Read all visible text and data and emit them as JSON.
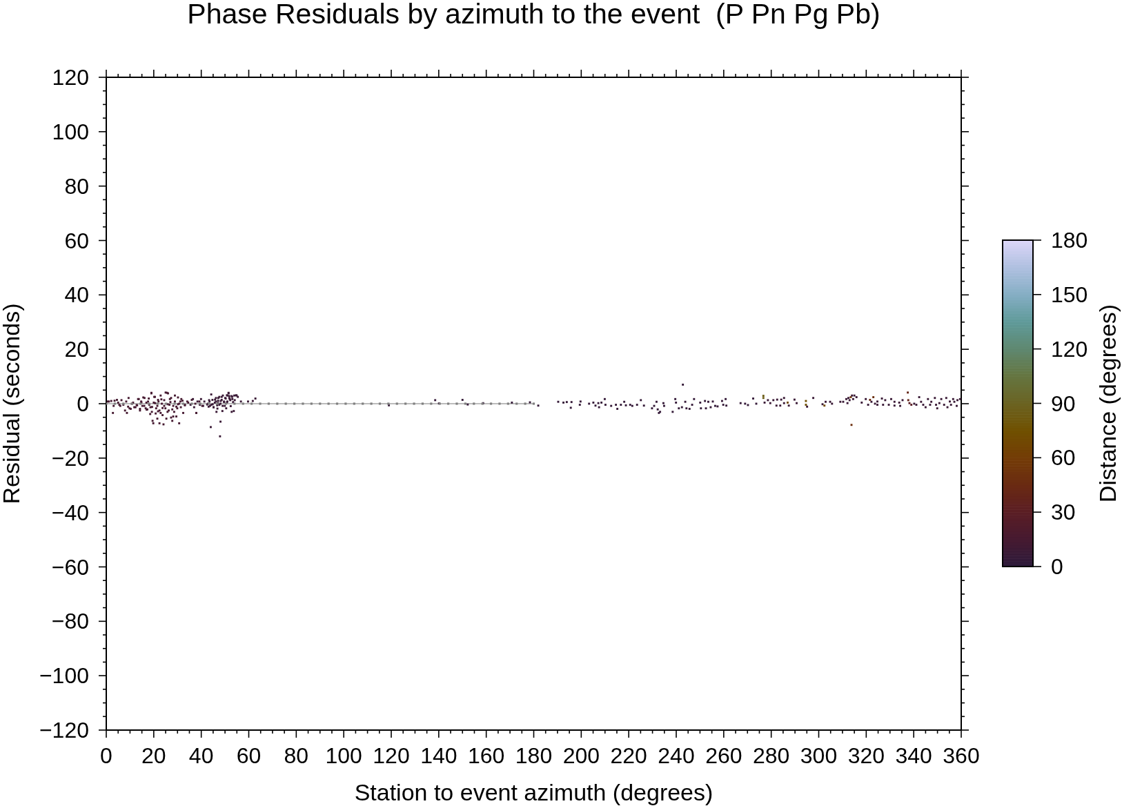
{
  "chart_data": {
    "type": "scatter",
    "title": "Phase Residuals by azimuth to the event  (P Pn Pg Pb)",
    "xlabel": "Station to event azimuth (degrees)",
    "ylabel": "Residual (seconds)",
    "clabel": "Distance (degrees)",
    "xlim": [
      0,
      360
    ],
    "xticks": [
      0,
      20,
      40,
      60,
      80,
      100,
      120,
      140,
      160,
      180,
      200,
      220,
      240,
      260,
      280,
      300,
      320,
      340,
      360
    ],
    "ylim": [
      -120,
      120
    ],
    "yticks": [
      {
        "value": -120,
        "label": "−120"
      },
      {
        "value": -100,
        "label": "−100"
      },
      {
        "value": -80,
        "label": "−80"
      },
      {
        "value": -60,
        "label": "−60"
      },
      {
        "value": -40,
        "label": "−40"
      },
      {
        "value": -20,
        "label": "−20"
      },
      0,
      20,
      40,
      60,
      80,
      100,
      120
    ],
    "clim": [
      0,
      180
    ],
    "cticks": [
      0,
      30,
      60,
      90,
      120,
      150,
      180
    ],
    "marker": "square",
    "series": [
      {
        "x": [
          0.6,
          2.1,
          3.1,
          2.8,
          4.5,
          5.5,
          6.4,
          7.9,
          8.7,
          9.4,
          9.8,
          11.3,
          12.3,
          13.7,
          14.2,
          15.2,
          16.1,
          16.6,
          17.6,
          18.1,
          19.0,
          18.5,
          19.5,
          19.8,
          20.2,
          21.0,
          21.5,
          22.0,
          22.4,
          22.9,
          24.1,
          24.4,
          25.0,
          25.3,
          26.0,
          26.3,
          26.8,
          27.3,
          27.8,
          28.2,
          28.9,
          29.5,
          29.9,
          30.7,
          31.2,
          31.6,
          32.4,
          33.1,
          34.1,
          12.8,
          14.8,
          17.0,
          19.3,
          20.6,
          21.8,
          23.2,
          23.7,
          25.8,
          27.0,
          28.6,
          30.2,
          35.5,
          36.5,
          37.0,
          37.9,
          38.4,
          39.4,
          39.9,
          40.8,
          41.3,
          42.8,
          43.3,
          43.7,
          44.0,
          44.2,
          45.2,
          46.2,
          46.4,
          47.2,
          47.6,
          47.9,
          48.1,
          48.6,
          48.9,
          49.6,
          50.1,
          50.5,
          51.0,
          51.5,
          52.0,
          52.8,
          53.0,
          53.7,
          54.1,
          54.9,
          56.7,
          59.7,
          61.7,
          62.8,
          45.8,
          47.0,
          48.2,
          49.0,
          50.8,
          51.8,
          53.4,
          44.8,
          46.8,
          52.4,
          119.0,
          138.5,
          140.1,
          150.0,
          152.2,
          158.7,
          170.8,
          178.4,
          181.9,
          190.3,
          192.5,
          193.9,
          195.9,
          195.6,
          199.7,
          199.4,
          203.3,
          205.1,
          206.0,
          207.2,
          207.5,
          208.5,
          209.9,
          210.2,
          212.6,
          214.6,
          215.2,
          216.7,
          218.1,
          218.8,
          220.6,
          221.5,
          223.5,
          225.1,
          226.4,
          229.8,
          230.7,
          231.7,
          232.2,
          232.7,
          233.2,
          234.6,
          234.9,
          238.5,
          239.6,
          239.9,
          241.1,
          242.8,
          242.4,
          243.8,
          244.3,
          245.6,
          246.7,
          247.5,
          250.1,
          250.4,
          252.1,
          252.5,
          253.5,
          254.5,
          255.4,
          256.4,
          257.4,
          259.3,
          259.8,
          260.8,
          261.1,
          267.1,
          269.0,
          270.2,
          272.4,
          273.7,
          276.7,
          276.7,
          277.2,
          278.6,
          279.6,
          280.9,
          282.2,
          282.5,
          283.8,
          284.2,
          285.4,
          285.4,
          286.9,
          287.4,
          289.8,
          290.7,
          294.6,
          294.6,
          295.1,
          297.7,
          301.6,
          302.4,
          302.9,
          304.8,
          305.6,
          309.1,
          310.3,
          311.6,
          312.1,
          312.5,
          313.0,
          313.5,
          314.0,
          314.5,
          315.0,
          313.8,
          315.9,
          318.1,
          319.8,
          320.8,
          321.6,
          322.2,
          323.0,
          323.7,
          324.7,
          324.7,
          326.6,
          327.1,
          328.0,
          329.5,
          330.5,
          331.9,
          331.9,
          333.9,
          334.3,
          335.3,
          337.5,
          337.7,
          338.2,
          339.0,
          340.2,
          341.1,
          342.3,
          343.1,
          344.0,
          345.0,
          346.0,
          346.9,
          347.4,
          348.9,
          349.4,
          349.9,
          350.8,
          351.6,
          352.8,
          353.7,
          354.2,
          355.2,
          355.7,
          356.6,
          357.1,
          358.1,
          358.4,
          359.5,
          1.1,
          3.5,
          5.0,
          5.9,
          7.2,
          8.4,
          9.2,
          10.3,
          10.8,
          11.8,
          13.0,
          13.4,
          14.2,
          14.7,
          15.6,
          16.0,
          16.9,
          17.3,
          17.9,
          18.6,
          19.0,
          19.2,
          20.0,
          20.5,
          20.8,
          21.5,
          21.8,
          22.4,
          22.9,
          23.4,
          23.7,
          24.4,
          24.9,
          25.6,
          25.8,
          26.6,
          27.3,
          27.8,
          28.2,
          28.9,
          29.5,
          30.2,
          30.7,
          31.4,
          32.1,
          33.1,
          34.5,
          36.0,
          37.5,
          37.9,
          39.2,
          40.4,
          42.5,
          43.1,
          43.5,
          44.2,
          44.7,
          45.2,
          45.7,
          46.2,
          46.7,
          47.1,
          47.6,
          48.1,
          48.6,
          49.1,
          49.6,
          49.9,
          50.3,
          50.8,
          51.0,
          51.5,
          51.8,
          52.2,
          52.8,
          53.1,
          53.9,
          54.7,
          55.4
        ],
        "values": [
          0.8,
          1.0,
          -0.8,
          -3.4,
          1.4,
          -0.4,
          1.3,
          -2.5,
          -3.4,
          2.1,
          -1.7,
          0.4,
          -1.3,
          1.7,
          -2.5,
          -0.8,
          2.1,
          -1.7,
          0.8,
          -0.4,
          3.8,
          -3.8,
          -6.3,
          -7.2,
          2.5,
          -1.7,
          -5.5,
          0.8,
          -7.2,
          -3.4,
          -7.6,
          -0.8,
          4.1,
          -5.5,
          3.8,
          -2.5,
          1.7,
          -5.1,
          -6.3,
          -0.8,
          3.0,
          -4.7,
          -1.7,
          -7.2,
          0.8,
          1.7,
          -3.4,
          -0.4,
          0.8,
          -0.5,
          0.5,
          -2.2,
          -1.2,
          0.2,
          -2.8,
          1.6,
          -1.6,
          -0.2,
          0.6,
          -3.0,
          -0.2,
          -0.4,
          1.7,
          -1.3,
          -3.4,
          0.8,
          -0.4,
          1.7,
          -0.8,
          0.8,
          0,
          1.3,
          -0.8,
          -8.6,
          3.4,
          -1.3,
          0.8,
          -3.0,
          2.1,
          -0.4,
          -12.0,
          -6.6,
          2.5,
          -2.7,
          0.8,
          2.1,
          -1.7,
          3.0,
          3.8,
          1.7,
          -3.0,
          2.5,
          -2.7,
          1.3,
          3.0,
          0.8,
          0.8,
          1.0,
          1.9,
          1.5,
          0.3,
          1.0,
          -0.8,
          0.5,
          2.8,
          0.6,
          -0.2,
          -1.8,
          -0.9,
          -0.6,
          1.3,
          0.1,
          1.4,
          -0.3,
          0.2,
          0.4,
          0.5,
          -0.7,
          0.7,
          0.4,
          0.6,
          0.6,
          -1.5,
          0.8,
          -0.4,
          0,
          0.4,
          -0.7,
          0.2,
          -1.3,
          0.4,
          1.7,
          -0.4,
          -0.8,
          -0.4,
          -1.9,
          -0.4,
          0.7,
          -0.6,
          -0.4,
          -0.8,
          -0.4,
          1.3,
          -0.7,
          -1.7,
          -0.8,
          0.7,
          -2.1,
          -3.4,
          -3.0,
          0.2,
          -0.8,
          -3.0,
          1.7,
          0.4,
          -1.7,
          7.0,
          -1.3,
          0.7,
          -1.7,
          -1.9,
          -0.4,
          1.7,
          0.4,
          -1.7,
          1.0,
          -1.7,
          0.7,
          -1.3,
          0.8,
          -0.8,
          -1.0,
          1.0,
          -0.4,
          1.7,
          -0.7,
          0.2,
          0,
          -0.5,
          1.9,
          0,
          2.9,
          2.1,
          0.4,
          1.3,
          0.2,
          1.3,
          -0.7,
          1.5,
          -0.7,
          1.5,
          2.1,
          0.2,
          0.4,
          -0.7,
          1.5,
          0.2,
          1.0,
          -0.4,
          -1.1,
          2.1,
          -0.2,
          -0.7,
          0.7,
          0.7,
          0,
          0.7,
          0.7,
          1.7,
          0.2,
          2.1,
          1.3,
          2.4,
          3.0,
          1.7,
          3.0,
          -7.8,
          2.4,
          0.4,
          1.7,
          -0.4,
          1.4,
          0.7,
          2.4,
          0,
          0.8,
          -0.4,
          1.9,
          -0.4,
          1.3,
          -0.4,
          1.7,
          0.7,
          -0.7,
          0.4,
          -0.8,
          1.3,
          4.1,
          1.3,
          0.2,
          -0.4,
          0,
          -0.4,
          2.4,
          0.7,
          -0.4,
          -1.3,
          1.7,
          -0.4,
          0.7,
          2.1,
          -0.4,
          -1.7,
          0.2,
          1.7,
          -0.4,
          2.1,
          -1.3,
          0.8,
          -0.4,
          1.7,
          0.7,
          -0.8,
          1.3,
          1.7,
          0.8,
          1.1,
          0.4,
          -0.8,
          -0.4,
          0.8,
          -1.1,
          -1.9,
          0,
          -1.3,
          -0.6,
          1.7,
          -1.9,
          0.8,
          2.3,
          -0.8,
          0.4,
          -2.1,
          1.9,
          -1.3,
          4.0,
          -3.0,
          0.4,
          2.5,
          -3.6,
          -0.8,
          1.4,
          -2.5,
          3.0,
          0,
          -4.2,
          1.3,
          -1.7,
          4.0,
          -3.0,
          -0.4,
          2.1,
          -2.1,
          -4.7,
          0.8,
          -1.1,
          2.3,
          0,
          -1.3,
          1.1,
          -0.6,
          0.4,
          1.4,
          0,
          -3.4,
          0.8,
          -0.8,
          -0.3,
          -1.1,
          0.8,
          -0.4,
          1.4,
          -1.3,
          0.4,
          2.1,
          -0.6,
          1.1,
          2.5,
          0,
          1.4,
          3.0,
          0.6,
          -0.8,
          1.9,
          3.1,
          0.8,
          4.0,
          2.1,
          1.3,
          2.8,
          1.7,
          3.0,
          3.1,
          2.5
        ],
        "colors": [
          "#461a31",
          "#461a31",
          "#461a31",
          "#461a31",
          "#461a31",
          "#461a31",
          "#461a31",
          "#461a31",
          "#461a31",
          "#461a31",
          "#461a31",
          "#461a31",
          "#461a31",
          "#461a31",
          "#461a31",
          "#461a31",
          "#461a31",
          "#461a31",
          "#461a31",
          "#461a31",
          "#461a31",
          "#461a31",
          "#461a31",
          "#461a31",
          "#461a31",
          "#461a31",
          "#461a31",
          "#461a31",
          "#461a31",
          "#461a31",
          "#461a31",
          "#461a31",
          "#461a31",
          "#461a31",
          "#461a31",
          "#461a31",
          "#461a31",
          "#461a31",
          "#461a31",
          "#461a31",
          "#461a31",
          "#461a31",
          "#461a31",
          "#461a31",
          "#461a31",
          "#461a31",
          "#461a31",
          "#461a31",
          "#461a31",
          "#461a31",
          "#461a31",
          "#461a31",
          "#461a31",
          "#461a31",
          "#461a31",
          "#461a31",
          "#461a31",
          "#461a31",
          "#461a31",
          "#461a31",
          "#461a31",
          "#3a1a36",
          "#3a1a36",
          "#3a1a36",
          "#3a1a36",
          "#3a1a36",
          "#3a1a36",
          "#3a1a36",
          "#3a1a36",
          "#3a1a36",
          "#3a1a36",
          "#3a1a36",
          "#3a1a36",
          "#3a1a36",
          "#3a1a36",
          "#3a1a36",
          "#3a1a36",
          "#3a1a36",
          "#3a1a36",
          "#3a1a36",
          "#3a1a36",
          "#3a1a36",
          "#3a1a36",
          "#3a1a36",
          "#3a1a36",
          "#3a1a36",
          "#3a1a36",
          "#3a1a36",
          "#3a1a36",
          "#3a1a36",
          "#3a1a36",
          "#3a1a36",
          "#3a1a36",
          "#3a1a36",
          "#3a1a36",
          "#3a1a36",
          "#3a1a36",
          "#3a1a36",
          "#3a1a36",
          "#3a1a36",
          "#3a1a36",
          "#3a1a36",
          "#3a1a36",
          "#3a1a36",
          "#3a1a36",
          "#3a1a36",
          "#3a1a36",
          "#3a1a36",
          "#3a1a36",
          "#351a38",
          "#351a38",
          "#351a38",
          "#351a38",
          "#351a38",
          "#351a38",
          "#351a38",
          "#351a38",
          "#351a38",
          "#351a38",
          "#351a38",
          "#351a38",
          "#351a38",
          "#351a38",
          "#351a38",
          "#351a38",
          "#351a38",
          "#351a38",
          "#351a38",
          "#351a38",
          "#351a38",
          "#351a38",
          "#351a38",
          "#351a38",
          "#351a38",
          "#351a38",
          "#351a38",
          "#351a38",
          "#351a38",
          "#351a38",
          "#351a38",
          "#351a38",
          "#351a38",
          "#351a38",
          "#351a38",
          "#351a38",
          "#351a38",
          "#351a38",
          "#351a38",
          "#351a38",
          "#351a38",
          "#351a38",
          "#351a38",
          "#351a38",
          "#351a38",
          "#351a38",
          "#351a38",
          "#351a38",
          "#351a38",
          "#351a38",
          "#351a38",
          "#351a38",
          "#351a38",
          "#351a38",
          "#351a38",
          "#351a38",
          "#351a38",
          "#351a38",
          "#351a38",
          "#351a38",
          "#351a38",
          "#351a38",
          "#351a38",
          "#351a38",
          "#351a38",
          "#351a38",
          "#351a38",
          "#351a38",
          "#351a38",
          "#351a38",
          "#351a38",
          "#351a38",
          "#6d5d17",
          "#6d5d17",
          "#3a1a36",
          "#3a1a36",
          "#3a1a36",
          "#3a1a36",
          "#3a1a36",
          "#3a1a36",
          "#3a1a36",
          "#3a1a36",
          "#3a1a36",
          "#3a1a36",
          "#714902",
          "#3a1a36",
          "#3a1a36",
          "#3a1a36",
          "#705000",
          "#705000",
          "#3a1a36",
          "#3a1a36",
          "#3a1a36",
          "#714902",
          "#3a1a36",
          "#3a1a36",
          "#3a1a36",
          "#3a1a36",
          "#3a1a36",
          "#3a1a36",
          "#3a1a36",
          "#3a1a36",
          "#3a1a36",
          "#70360a",
          "#3a1a36",
          "#3a1a36",
          "#3a1a36",
          "#6d300e",
          "#3a1a36",
          "#3a1a36",
          "#3a1a36",
          "#3a1a36",
          "#6a2a12",
          "#3a1a36",
          "#6d300e",
          "#3a1a36",
          "#3a1a36",
          "#3a1a36",
          "#3a1a36",
          "#3a1a36",
          "#3a1a36",
          "#3a1a36",
          "#3a1a36",
          "#3a1a36",
          "#3a1a36",
          "#3a1a36",
          "#3a1a36",
          "#3a1a36",
          "#652618",
          "#652618",
          "#5a1d24",
          "#5a1d24",
          "#3a1a36",
          "#3a1a36",
          "#3a1a36",
          "#3a1a36",
          "#3a1a36",
          "#3a1a36",
          "#3a1a36",
          "#3a1a36",
          "#3a1a36",
          "#3a1a36",
          "#3a1a36",
          "#3a1a36",
          "#3a1a36",
          "#3a1a36",
          "#3a1a36",
          "#3a1a36",
          "#3a1a36",
          "#3a1a36",
          "#3a1a36",
          "#3a1a36",
          "#3a1a36",
          "#3a1a36",
          "#3a1a36",
          "#3a1a36",
          "#461a31",
          "#461a31",
          "#461a31",
          "#461a31",
          "#461a31",
          "#461a31",
          "#461a31",
          "#461a31",
          "#461a31",
          "#461a31",
          "#461a31",
          "#461a31",
          "#461a31",
          "#461a31",
          "#461a31",
          "#461a31",
          "#461a31",
          "#461a31",
          "#461a31",
          "#461a31",
          "#461a31",
          "#461a31",
          "#461a31",
          "#461a31",
          "#461a31",
          "#461a31",
          "#461a31",
          "#461a31",
          "#461a31",
          "#461a31",
          "#461a31",
          "#461a31",
          "#461a31",
          "#461a31",
          "#461a31",
          "#461a31",
          "#461a31",
          "#461a31",
          "#461a31",
          "#461a31",
          "#461a31",
          "#461a31",
          "#461a31",
          "#461a31",
          "#461a31",
          "#461a31",
          "#461a31",
          "#461a31",
          "#461a31",
          "#461a31",
          "#461a31",
          "#461a31",
          "#3a1a36",
          "#3a1a36",
          "#3a1a36",
          "#3a1a36",
          "#3a1a36",
          "#3a1a36",
          "#3a1a36",
          "#3a1a36",
          "#3a1a36",
          "#3a1a36",
          "#3a1a36",
          "#3a1a36",
          "#3a1a36",
          "#3a1a36",
          "#3a1a36",
          "#3a1a36",
          "#3a1a36",
          "#3a1a36",
          "#3a1a36",
          "#3a1a36",
          "#3a1a36",
          "#3a1a36",
          "#3a1a36",
          "#3a1a36",
          "#3a1a36",
          "#3a1a36",
          "#3a1a36"
        ]
      },
      {
        "type": "line",
        "color": "#808080",
        "x": [
          0,
          3.6,
          7.2,
          10.8,
          14.4,
          18,
          21.6,
          25.2,
          28.8,
          32.4,
          36,
          39.6,
          43.2,
          46.8,
          50.4,
          54,
          57.6,
          61.2,
          64.8,
          68.4,
          72,
          75.6,
          79.2,
          82.8,
          86.4,
          90,
          93.6,
          97.2,
          100.8,
          104.4,
          108,
          111.6,
          115.2,
          118.8,
          122.4,
          126,
          129.6,
          133.2,
          136.8,
          140.4,
          144,
          147.6,
          151.2,
          154.8,
          158.4,
          162,
          165.6,
          169.2,
          172.8,
          176.4,
          180
        ],
        "values": [
          0,
          0,
          0,
          0,
          0,
          0,
          0,
          0,
          0,
          0,
          0,
          0,
          0,
          0,
          0,
          0,
          0,
          0,
          0,
          0,
          0,
          0,
          0,
          0,
          0,
          0,
          0,
          0,
          0,
          0,
          0,
          0,
          0,
          0,
          0,
          0,
          0,
          0,
          0,
          0,
          0,
          0,
          0,
          0,
          0,
          0,
          0,
          0,
          0,
          0,
          0
        ]
      }
    ]
  }
}
